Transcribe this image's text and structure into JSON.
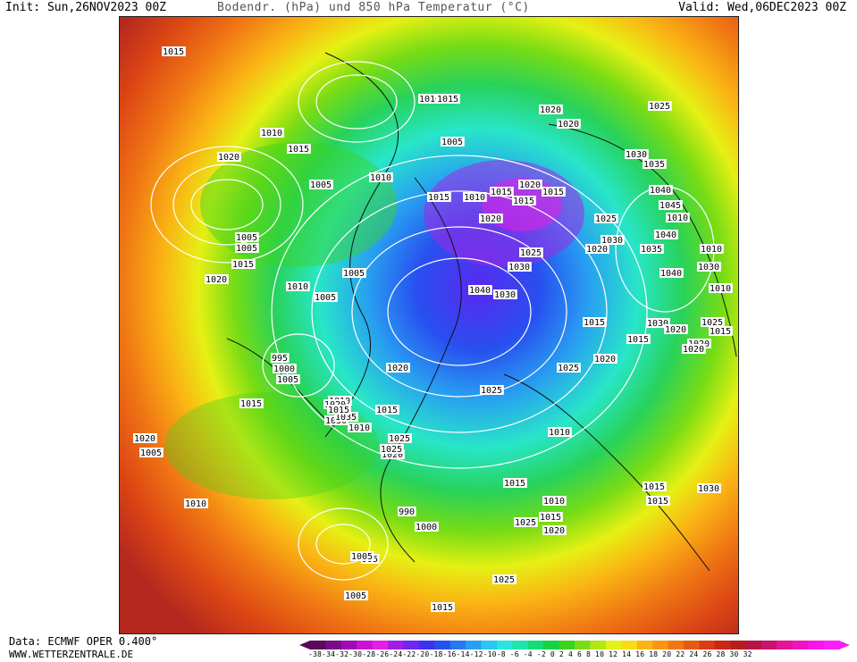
{
  "header": {
    "init": "Init: Sun,26NOV2023 00Z",
    "title": "Bodendr. (hPa) und 850 hPa Temperatur (°C)",
    "valid": "Valid: Wed,06DEC2023 00Z"
  },
  "footer": {
    "data_source": "Data: ECMWF OPER 0.400°",
    "site": "WWW.WETTERZENTRALE.DE"
  },
  "legend": {
    "ticks": "-38-34-32-30-28-26-24-22-20-18-16-14-12-10-8 -6 -4 -2 0 2 4 6 8 10 12 14 16 18 20 22 24 26 28 30 32",
    "colors": [
      "#5a0a5a",
      "#7a0a8a",
      "#a00ab4",
      "#c814d2",
      "#e61ee6",
      "#a01ee6",
      "#6e28f0",
      "#3c32f0",
      "#2850f0",
      "#2878f0",
      "#28a0f0",
      "#28c8f0",
      "#28e6dc",
      "#1ee6aa",
      "#14dc78",
      "#14d246",
      "#3cd21e",
      "#78dc14",
      "#b4e614",
      "#e6f014",
      "#fadc14",
      "#fab414",
      "#fa9614",
      "#f07814",
      "#e65a14",
      "#dc3c14",
      "#c82814",
      "#b41e1e",
      "#b41446",
      "#c8146e",
      "#e61496",
      "#f014be",
      "#fa14e6",
      "#fa1efa"
    ]
  },
  "pressure_labels": [
    "1015",
    "1010",
    "1015",
    "1010",
    "1020",
    "1025",
    "1015",
    "1005",
    "1020",
    "1015",
    "1020",
    "1030",
    "1035",
    "1005",
    "1010",
    "1015",
    "1015",
    "1010",
    "1015",
    "1020",
    "1040",
    "1045",
    "1010",
    "1005",
    "1005",
    "1020",
    "1040",
    "1025",
    "1035",
    "1030",
    "1020",
    "1030",
    "1015",
    "1020",
    "1010",
    "1005",
    "1040",
    "1040",
    "1025",
    "1030",
    "1010",
    "1030",
    "1005",
    "1010",
    "1015",
    "995",
    "1000",
    "1005",
    "1015",
    "1010",
    "1025",
    "1025",
    "1020",
    "1030",
    "1020",
    "1025",
    "1020",
    "1030",
    "1015",
    "1020",
    "1010",
    "1020",
    "1025",
    "1015",
    "1015",
    "1015",
    "1010",
    "1015",
    "990",
    "1000",
    "1020",
    "1005",
    "1010",
    "995",
    "1005",
    "1015",
    "1005",
    "1025",
    "1020",
    "1035",
    "1015",
    "1010",
    "1015",
    "1025",
    "1015",
    "1025",
    "1020",
    "1030",
    "1020"
  ]
}
